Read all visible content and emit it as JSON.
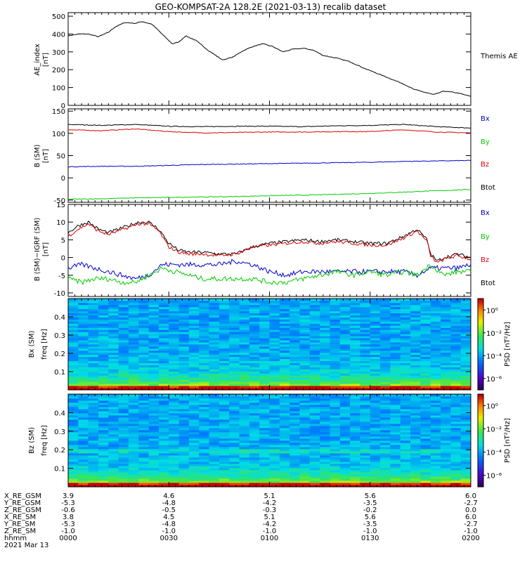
{
  "title": "GEO-KOMPSAT-2A 128.2E (2021-03-13) recalib dataset",
  "panels": {
    "ae": {
      "ylabel": "AE_index",
      "unit": "[nT]",
      "legend": [
        "Themis AE"
      ],
      "yticks": [
        "0",
        "100",
        "200",
        "300",
        "400",
        "500"
      ]
    },
    "b": {
      "ylabel": "B (SM)",
      "unit": "[nT]",
      "legend": [
        "Bx",
        "By",
        "Bz",
        "Btot"
      ],
      "yticks": [
        "-50",
        "0",
        "50",
        "100",
        "150"
      ]
    },
    "db": {
      "ylabel": "B (SM)−IGRF (SM)",
      "unit": "[nT]",
      "legend": [
        "Bx",
        "By",
        "Bz",
        "Btot"
      ],
      "yticks": [
        "-10",
        "-5",
        "0",
        "5",
        "10",
        "15"
      ]
    },
    "spec_bx": {
      "ylabel": "Bx (SM)",
      "unit": "freq [Hz]",
      "yticks": [
        "0.1",
        "0.2",
        "0.3",
        "0.4"
      ],
      "cbar_label": "PSD [nT²/Hz]",
      "cbar_ticks": [
        "10⁰",
        "10⁻²",
        "10⁻⁴",
        "10⁻⁶"
      ]
    },
    "spec_bz": {
      "ylabel": "Bz (SM)",
      "unit": "freq [Hz]",
      "yticks": [
        "0.1",
        "0.2",
        "0.3",
        "0.4"
      ],
      "cbar_label": "PSD [nT²/Hz]",
      "cbar_ticks": [
        "10⁰",
        "10⁻²",
        "10⁻⁴",
        "10⁻⁶"
      ]
    }
  },
  "ephemeris": {
    "labels": [
      "X_RE_GSM",
      "Y_RE_GSM",
      "Z_RE_GSM",
      "X_RE_SM",
      "Y_RE_SM",
      "Z_RE_SM",
      "hhmm",
      "2021 Mar 13"
    ],
    "columns": [
      [
        "3.9",
        "-5.3",
        "-0.6",
        "3.8",
        "-5.3",
        "-1.0",
        "0000"
      ],
      [
        "4.6",
        "-4.8",
        "-0.5",
        "4.5",
        "-4.8",
        "-1.0",
        "0030"
      ],
      [
        "5.1",
        "-4.2",
        "-0.3",
        "5.1",
        "-4.2",
        "-1.0",
        "0100"
      ],
      [
        "5.6",
        "-3.5",
        "-0.2",
        "5.6",
        "-3.5",
        "-1.0",
        "0130"
      ],
      [
        "6.0",
        "-2.7",
        "0.0",
        "6.0",
        "-2.7",
        "-1.0",
        "0200"
      ]
    ]
  },
  "colors": {
    "bx": "#0000cc",
    "by": "#00cc00",
    "bz": "#dd0000",
    "btot": "#000000"
  },
  "chart_data": [
    {
      "type": "line",
      "x_unit": "minutes after 0000 UT",
      "xlim": [
        0,
        120
      ],
      "ylim": [
        0,
        520
      ],
      "series": [
        {
          "name": "Themis AE",
          "x": [
            0,
            3,
            6,
            9,
            12,
            14,
            17,
            20,
            22,
            25,
            28,
            31,
            33,
            35,
            38,
            42,
            46,
            49,
            52,
            55,
            58,
            61,
            64,
            67,
            70,
            73,
            76,
            80,
            84,
            88,
            92,
            96,
            100,
            103,
            106,
            109,
            112,
            116,
            120
          ],
          "y": [
            390,
            400,
            400,
            385,
            410,
            440,
            465,
            460,
            470,
            455,
            400,
            345,
            355,
            390,
            365,
            305,
            255,
            270,
            305,
            330,
            345,
            330,
            300,
            315,
            320,
            310,
            280,
            265,
            245,
            210,
            180,
            150,
            120,
            90,
            75,
            60,
            80,
            70,
            50
          ]
        }
      ]
    },
    {
      "type": "line",
      "x_unit": "minutes after 0000 UT",
      "xlim": [
        0,
        120
      ],
      "ylim": [
        -55,
        155
      ],
      "series": [
        {
          "name": "Btot",
          "x": [
            0,
            10,
            20,
            30,
            40,
            50,
            60,
            70,
            80,
            90,
            100,
            110,
            120
          ],
          "y": [
            120,
            118,
            120,
            116,
            115,
            116,
            116,
            115,
            117,
            118,
            120,
            115,
            112
          ]
        },
        {
          "name": "Bz",
          "x": [
            0,
            10,
            20,
            30,
            40,
            50,
            60,
            70,
            80,
            90,
            100,
            110,
            120
          ],
          "y": [
            108,
            106,
            110,
            104,
            101,
            102,
            103,
            103,
            104,
            104,
            108,
            103,
            101
          ]
        },
        {
          "name": "Bx",
          "x": [
            0,
            10,
            20,
            30,
            40,
            50,
            60,
            70,
            80,
            90,
            100,
            110,
            120
          ],
          "y": [
            25,
            26,
            26,
            28,
            30,
            31,
            32,
            33,
            34,
            35,
            37,
            38,
            39
          ]
        },
        {
          "name": "By",
          "x": [
            0,
            10,
            20,
            30,
            40,
            50,
            60,
            70,
            80,
            90,
            100,
            110,
            120
          ],
          "y": [
            -48,
            -47,
            -45,
            -44,
            -43,
            -42,
            -40,
            -39,
            -37,
            -35,
            -32,
            -29,
            -26
          ]
        }
      ]
    },
    {
      "type": "line",
      "x_unit": "minutes after 0000 UT",
      "xlim": [
        0,
        120
      ],
      "ylim": [
        -11,
        15
      ],
      "series": [
        {
          "name": "Btot",
          "x": [
            0,
            3,
            6,
            9,
            12,
            15,
            18,
            21,
            24,
            27,
            30,
            33,
            36,
            40,
            45,
            50,
            55,
            60,
            65,
            70,
            75,
            80,
            85,
            90,
            95,
            100,
            104,
            107,
            108,
            110,
            112,
            116,
            120
          ],
          "y": [
            7,
            9,
            10,
            8,
            7,
            8,
            9,
            10,
            10,
            8,
            4,
            2,
            1.5,
            1.5,
            1,
            1,
            3,
            4,
            4.5,
            5,
            4.5,
            5,
            4.5,
            4,
            4,
            6,
            8,
            5,
            1,
            -1,
            0,
            1,
            0
          ]
        },
        {
          "name": "Bz",
          "x": [
            0,
            3,
            6,
            9,
            12,
            15,
            18,
            21,
            24,
            27,
            30,
            33,
            36,
            40,
            45,
            50,
            55,
            60,
            65,
            70,
            75,
            80,
            85,
            90,
            95,
            100,
            104,
            107,
            108,
            110,
            112,
            116,
            120
          ],
          "y": [
            6,
            8,
            9.5,
            7.5,
            6.5,
            7.5,
            8.5,
            9.5,
            9.5,
            7.5,
            3,
            1.5,
            1,
            1,
            0.5,
            1,
            3,
            3.5,
            4,
            4.5,
            4,
            4.5,
            4,
            3.5,
            3.5,
            5.5,
            7.5,
            4.5,
            0.5,
            -1.5,
            -0.5,
            0.5,
            -0.5
          ]
        },
        {
          "name": "Bx",
          "x": [
            0,
            4,
            8,
            12,
            16,
            20,
            24,
            28,
            32,
            36,
            40,
            45,
            50,
            55,
            60,
            65,
            70,
            75,
            80,
            85,
            90,
            95,
            100,
            104,
            108,
            112,
            116,
            120
          ],
          "y": [
            -3,
            -2,
            -3,
            -4,
            -5,
            -6,
            -5,
            -2,
            -2,
            -2,
            -2,
            -2,
            -1,
            -2,
            -4,
            -5,
            -4,
            -4,
            -4,
            -4,
            -4,
            -4,
            -4,
            -5,
            -3,
            -3,
            -3,
            -2
          ]
        },
        {
          "name": "By",
          "x": [
            0,
            4,
            8,
            12,
            16,
            20,
            24,
            28,
            32,
            36,
            40,
            45,
            50,
            55,
            60,
            65,
            70,
            75,
            80,
            85,
            90,
            95,
            100,
            104,
            108,
            112,
            116,
            120
          ],
          "y": [
            -6,
            -7,
            -6,
            -6,
            -7,
            -7,
            -5,
            -3,
            -4,
            -5,
            -6,
            -6,
            -6,
            -6,
            -7,
            -7,
            -6,
            -5,
            -4,
            -5,
            -4,
            -5,
            -4,
            -5,
            -2,
            -5,
            -4,
            -4
          ]
        }
      ]
    },
    {
      "type": "heatmap",
      "name": "Bx (SM) spectrogram",
      "x_unit": "minutes after 0000 UT",
      "xlim": [
        0,
        120
      ],
      "ylim": [
        0,
        0.5
      ],
      "z_unit": "log10 PSD [nT²/Hz]",
      "zlim": [
        -7,
        1
      ]
    },
    {
      "type": "heatmap",
      "name": "Bz (SM) spectrogram",
      "x_unit": "minutes after 0000 UT",
      "xlim": [
        0,
        120
      ],
      "ylim": [
        0,
        0.5
      ],
      "z_unit": "log10 PSD [nT²/Hz]",
      "zlim": [
        -7,
        1
      ]
    }
  ]
}
